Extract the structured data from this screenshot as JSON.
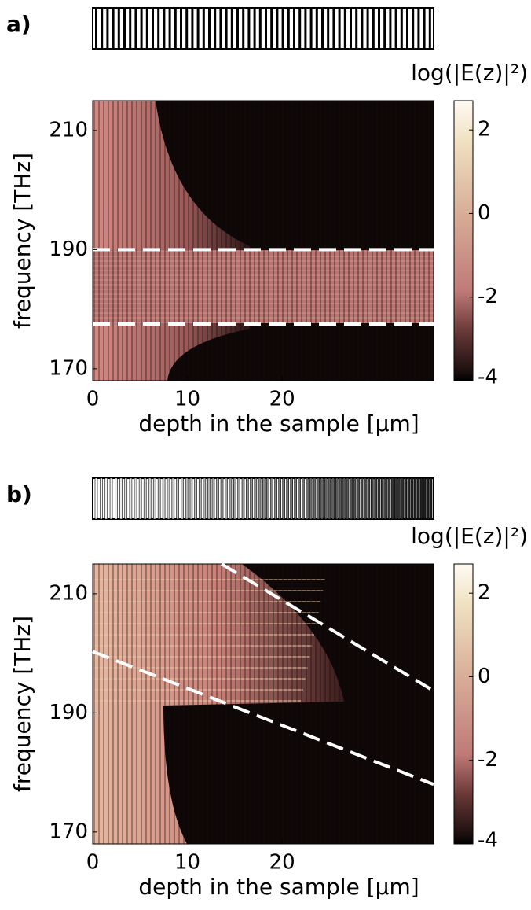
{
  "chart_data": [
    {
      "type": "heatmap",
      "panel_label": "a)",
      "xlabel": "depth in the sample [μm]",
      "ylabel": "frequency [THz]",
      "xlim": [
        0,
        36
      ],
      "xticks": [
        0,
        10,
        20
      ],
      "ylim": [
        168,
        215
      ],
      "yticks": [
        170,
        190,
        210
      ],
      "colorbar": {
        "label": "log(|E(z)|²)",
        "lim": [
          -4,
          2.7
        ],
        "ticks": [
          -4,
          -2,
          0,
          2
        ]
      },
      "guides": [
        {
          "x": [
            0,
            36
          ],
          "y": [
            190,
            190
          ]
        },
        {
          "x": [
            0,
            36
          ],
          "y": [
            177.5,
            177.5
          ]
        }
      ]
    },
    {
      "type": "heatmap",
      "panel_label": "b)",
      "xlabel": "depth in the sample [μm]",
      "ylabel": "frequency [THz]",
      "xlim": [
        0,
        36
      ],
      "xticks": [
        0,
        10,
        20
      ],
      "ylim": [
        168,
        215
      ],
      "yticks": [
        170,
        190,
        210
      ],
      "colorbar": {
        "label": "log(|E(z)|²)",
        "lim": [
          -4,
          2.7
        ],
        "ticks": [
          -4,
          -2,
          0,
          2
        ]
      },
      "guides": [
        {
          "x": [
            13.6,
            36
          ],
          "y": [
            215,
            193.7
          ]
        },
        {
          "x": [
            0,
            36
          ],
          "y": [
            200.3,
            178
          ]
        }
      ]
    }
  ]
}
